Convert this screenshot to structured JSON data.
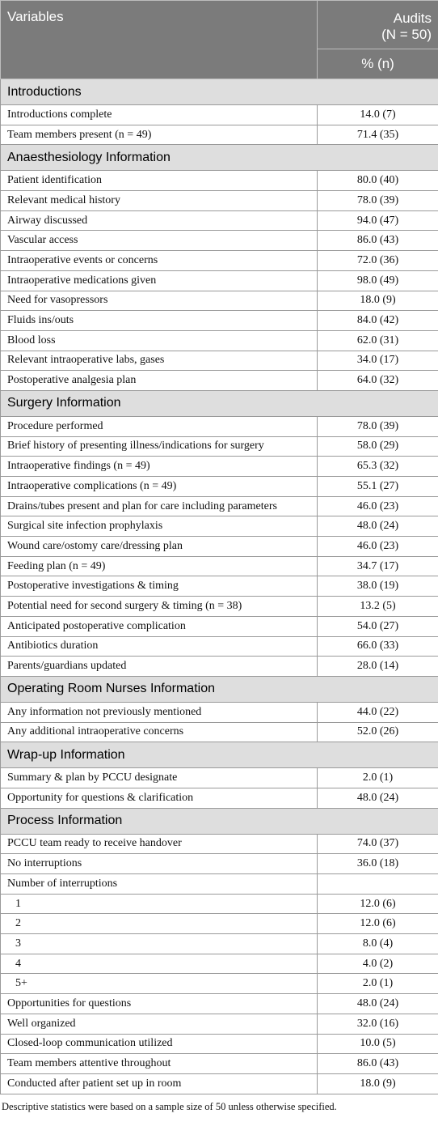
{
  "header": {
    "variables": "Variables",
    "audits": "Audits",
    "n_total": "(N = 50)",
    "unit": "% (n)"
  },
  "sections": [
    {
      "title": "Introductions",
      "rows": [
        [
          "Introductions complete",
          "14.0 (7)"
        ],
        [
          "Team members present (n = 49)",
          "71.4 (35)"
        ]
      ]
    },
    {
      "title": "Anaesthesiology Information",
      "rows": [
        [
          "Patient identification",
          "80.0 (40)"
        ],
        [
          "Relevant medical history",
          "78.0 (39)"
        ],
        [
          "Airway discussed",
          "94.0 (47)"
        ],
        [
          "Vascular access",
          "86.0 (43)"
        ],
        [
          "Intraoperative events or concerns",
          "72.0 (36)"
        ],
        [
          "Intraoperative medications given",
          "98.0 (49)"
        ],
        [
          "Need for vasopressors",
          "18.0 (9)"
        ],
        [
          "Fluids ins/outs",
          "84.0 (42)"
        ],
        [
          "Blood loss",
          "62.0 (31)"
        ],
        [
          "Relevant intraoperative labs, gases",
          "34.0 (17)"
        ],
        [
          "Postoperative analgesia plan",
          "64.0 (32)"
        ]
      ]
    },
    {
      "title": "Surgery Information",
      "rows": [
        [
          "Procedure performed",
          "78.0 (39)"
        ],
        [
          "Brief history of presenting illness/indications for surgery",
          "58.0 (29)"
        ],
        [
          "Intraoperative findings (n = 49)",
          "65.3 (32)"
        ],
        [
          "Intraoperative complications (n = 49)",
          "55.1 (27)"
        ],
        [
          "Drains/tubes present and plan for care including parameters",
          "46.0 (23)"
        ],
        [
          "Surgical site infection prophylaxis",
          "48.0 (24)"
        ],
        [
          "Wound care/ostomy care/dressing plan",
          "46.0 (23)"
        ],
        [
          "Feeding plan (n = 49)",
          "34.7 (17)"
        ],
        [
          "Postoperative investigations & timing",
          "38.0 (19)"
        ],
        [
          "Potential need for second surgery & timing (n = 38)",
          "13.2 (5)"
        ],
        [
          "Anticipated postoperative complication",
          "54.0 (27)"
        ],
        [
          "Antibiotics duration",
          "66.0 (33)"
        ],
        [
          "Parents/guardians updated",
          "28.0 (14)"
        ]
      ]
    },
    {
      "title": "Operating Room Nurses Information",
      "rows": [
        [
          "Any information not previously mentioned",
          "44.0 (22)"
        ],
        [
          "Any additional intraoperative concerns",
          "52.0 (26)"
        ]
      ]
    },
    {
      "title": "Wrap-up Information",
      "rows": [
        [
          "Summary & plan by PCCU designate",
          "2.0 (1)"
        ],
        [
          "Opportunity for questions & clarification",
          "48.0 (24)"
        ]
      ]
    },
    {
      "title": "Process Information",
      "rows": [
        [
          "PCCU team ready to receive handover",
          "74.0 (37)"
        ],
        [
          "No interruptions",
          "36.0 (18)"
        ],
        [
          "Number of interruptions"
        ],
        [
          "1",
          "12.0 (6)"
        ],
        [
          "2",
          "12.0 (6)"
        ],
        [
          "3",
          "8.0 (4)"
        ],
        [
          "4",
          "4.0 (2)"
        ],
        [
          "5+",
          "2.0 (1)"
        ],
        [
          "Opportunities for questions",
          "48.0 (24)"
        ],
        [
          "Well organized",
          "32.0 (16)"
        ],
        [
          "Closed-loop communication utilized",
          "10.0 (5)"
        ],
        [
          "Team members attentive throughout",
          "86.0 (43)"
        ],
        [
          "Conducted after patient set up in room",
          "18.0 (9)"
        ]
      ]
    }
  ],
  "footnote": "Descriptive statistics were based on a sample size of 50 unless otherwise specified."
}
